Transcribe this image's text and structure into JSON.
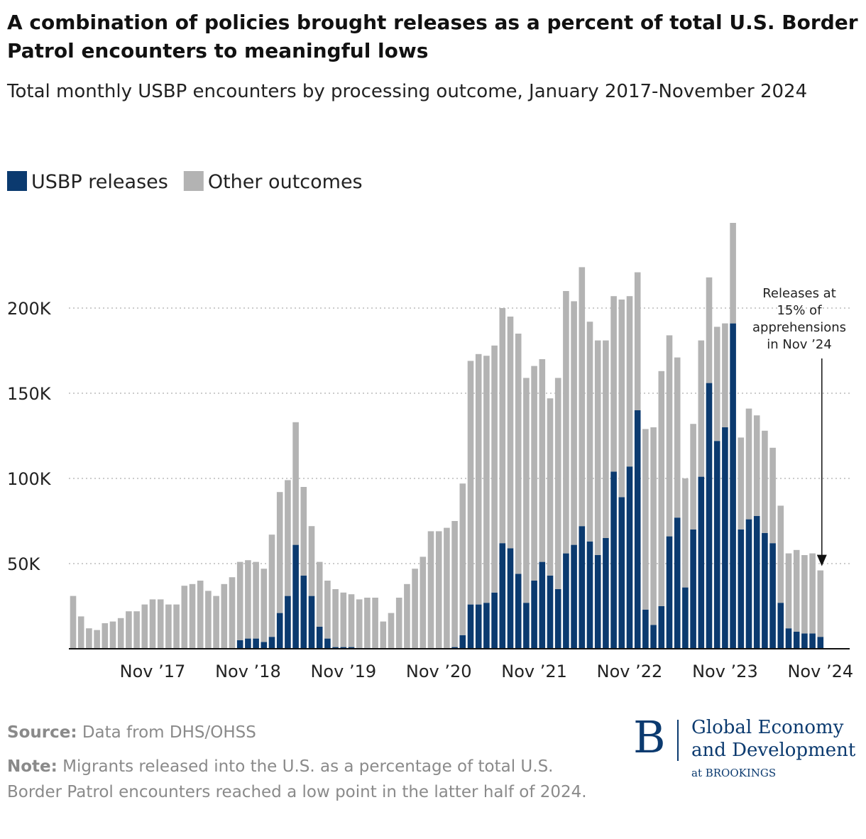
{
  "chart_data": {
    "type": "stacked_bar",
    "title": "A combination of policies brought releases as a percent of total U.S. Border Patrol encounters to meaningful lows",
    "subtitle": "Total monthly USBP encounters by processing outcome, January 2017-November 2024",
    "categories": [
      null,
      null,
      null,
      null,
      null,
      null,
      null,
      null,
      null,
      null,
      "Nov ’17",
      null,
      null,
      null,
      null,
      null,
      null,
      null,
      null,
      null,
      null,
      null,
      "Nov ’18",
      null,
      null,
      null,
      null,
      null,
      null,
      null,
      null,
      null,
      null,
      null,
      "Nov ’19",
      null,
      null,
      null,
      null,
      null,
      null,
      null,
      null,
      null,
      null,
      null,
      "Nov ’20",
      null,
      null,
      null,
      null,
      null,
      null,
      null,
      null,
      null,
      null,
      null,
      "Nov ’21",
      null,
      null,
      null,
      null,
      null,
      null,
      null,
      null,
      null,
      null,
      null,
      "Nov ’22",
      null,
      null,
      null,
      null,
      null,
      null,
      null,
      null,
      null,
      null,
      null,
      "Nov ’23",
      null,
      null,
      null,
      null,
      null,
      null,
      null,
      null,
      null,
      null,
      null,
      "Nov ’24"
    ],
    "series": [
      {
        "name": "USBP releases",
        "color": "#0b3a6f",
        "values": [
          0,
          0,
          0,
          0,
          0,
          0,
          0,
          0,
          0,
          0,
          0,
          0,
          0,
          0,
          0,
          0,
          0,
          0,
          0,
          0,
          0,
          5000,
          6000,
          6000,
          4000,
          7000,
          21000,
          31000,
          61000,
          43000,
          31000,
          13000,
          6000,
          1000,
          1000,
          1000,
          500,
          500,
          0,
          0,
          0,
          0,
          0,
          0,
          0,
          0,
          0,
          0,
          1000,
          8000,
          26000,
          26000,
          27000,
          33000,
          62000,
          59000,
          44000,
          27000,
          40000,
          51000,
          43000,
          35000,
          56000,
          61000,
          72000,
          63000,
          55000,
          65000,
          104000,
          89000,
          107000,
          140000,
          23000,
          14000,
          25000,
          66000,
          77000,
          36000,
          70000,
          101000,
          156000,
          122000,
          130000,
          191000,
          70000,
          76000,
          78000,
          68000,
          62000,
          27000,
          12000,
          10000,
          9000,
          9000,
          7000
        ]
      },
      {
        "name": "Other outcomes",
        "color": "#b3b3b3",
        "values": [
          31000,
          19000,
          12000,
          11000,
          15000,
          16000,
          18000,
          22000,
          22000,
          26000,
          29000,
          29000,
          26000,
          26000,
          37000,
          38000,
          40000,
          34000,
          31000,
          38000,
          42000,
          46000,
          46000,
          45000,
          43000,
          60000,
          71000,
          68000,
          72000,
          52000,
          41000,
          38000,
          34000,
          34000,
          32000,
          31000,
          28500,
          29500,
          30000,
          16000,
          21000,
          30000,
          38000,
          47000,
          54000,
          69000,
          69000,
          71000,
          74000,
          89000,
          143000,
          147000,
          145000,
          145000,
          138000,
          136000,
          141000,
          132000,
          126000,
          119000,
          104000,
          124000,
          154000,
          143000,
          152000,
          129000,
          126000,
          116000,
          103000,
          116000,
          100000,
          81000,
          106000,
          116000,
          138000,
          118000,
          94000,
          64000,
          62000,
          80000,
          62000,
          67000,
          61000,
          59000,
          54000,
          65000,
          59000,
          60000,
          56000,
          57000,
          44000,
          48000,
          46000,
          47000,
          39000
        ]
      }
    ],
    "ylim": [
      0,
      250000
    ],
    "yticks": [
      {
        "value": 50000,
        "label": "50K"
      },
      {
        "value": 100000,
        "label": "100K"
      },
      {
        "value": 150000,
        "label": "150K"
      },
      {
        "value": 200000,
        "label": "200K"
      }
    ],
    "grid": true,
    "annotation": [
      "Releases at",
      "15% of",
      "apprehensions",
      "in Nov ’24"
    ]
  },
  "source": {
    "label": "Source:",
    "text": "Data from DHS/OHSS"
  },
  "note": {
    "label": "Note:",
    "text": "Migrants released into the U.S. as a percentage of total U.S. Border Patrol encounters reached a low point in the latter half of 2024."
  },
  "logo": {
    "letter": "B",
    "line1": "Global Economy",
    "line2": "and Development",
    "line3": "at BROOKINGS"
  }
}
